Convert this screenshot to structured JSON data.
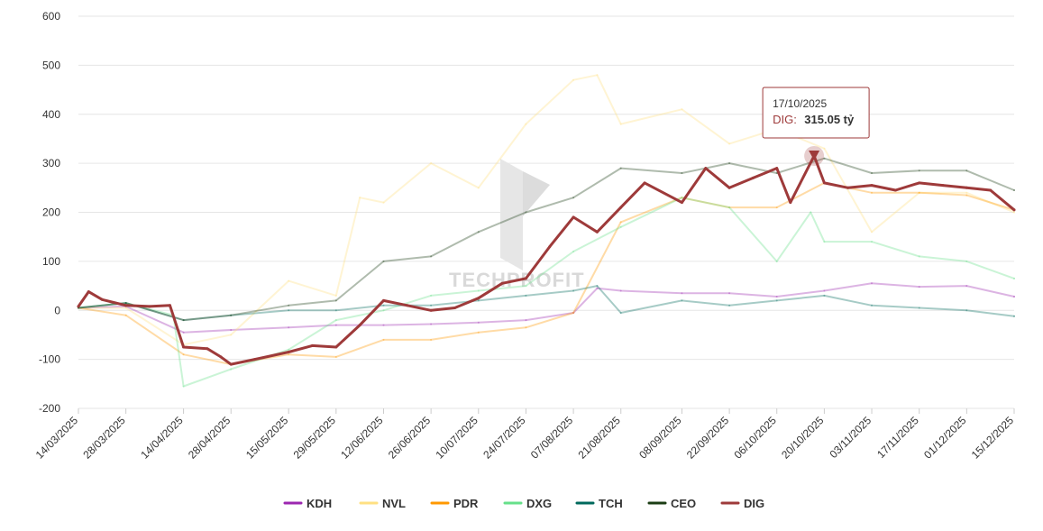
{
  "chart_data": {
    "type": "line",
    "title": "",
    "xlabel": "",
    "ylabel": "",
    "ylim": [
      -200,
      600
    ],
    "yticks": [
      600,
      500,
      400,
      300,
      200,
      100,
      0,
      -100,
      -200
    ],
    "xlim": [
      "14/03/2025",
      "15/12/2025"
    ],
    "xticks": [
      "14/03/2025",
      "28/03/2025",
      "14/04/2025",
      "28/04/2025",
      "15/05/2025",
      "29/05/2025",
      "12/06/2025",
      "26/06/2025",
      "10/07/2025",
      "24/07/2025",
      "07/08/2025",
      "21/08/2025",
      "08/09/2025",
      "22/09/2025",
      "06/10/2025",
      "20/10/2025",
      "03/11/2025",
      "17/11/2025",
      "01/12/2025",
      "15/12/2025"
    ],
    "grid": true,
    "legend_position": "bottom",
    "highlighted_series": "DIG",
    "watermark": "TECHPROFIT",
    "series": [
      {
        "name": "KDH",
        "color": "#9c27b0",
        "x": [
          "14/03/2025",
          "28/03/2025",
          "14/04/2025",
          "28/04/2025",
          "15/05/2025",
          "29/05/2025",
          "12/06/2025",
          "26/06/2025",
          "10/07/2025",
          "24/07/2025",
          "07/08/2025",
          "14/08/2025",
          "21/08/2025",
          "08/09/2025",
          "22/09/2025",
          "06/10/2025",
          "20/10/2025",
          "03/11/2025",
          "17/11/2025",
          "01/12/2025",
          "15/12/2025"
        ],
        "values": [
          5,
          8,
          -45,
          -40,
          -35,
          -30,
          -30,
          -28,
          -25,
          -20,
          -5,
          45,
          40,
          35,
          35,
          28,
          40,
          55,
          48,
          50,
          28
        ]
      },
      {
        "name": "NVL",
        "color": "#ffe082",
        "x": [
          "14/03/2025",
          "28/03/2025",
          "14/04/2025",
          "28/04/2025",
          "15/05/2025",
          "29/05/2025",
          "05/06/2025",
          "12/06/2025",
          "26/06/2025",
          "10/07/2025",
          "24/07/2025",
          "07/08/2025",
          "14/08/2025",
          "21/08/2025",
          "08/09/2025",
          "22/09/2025",
          "06/10/2025",
          "20/10/2025",
          "03/11/2025",
          "17/11/2025",
          "01/12/2025",
          "15/12/2025"
        ],
        "values": [
          5,
          5,
          -70,
          -50,
          60,
          30,
          230,
          220,
          300,
          250,
          380,
          470,
          480,
          380,
          410,
          340,
          370,
          330,
          160,
          240,
          240,
          200
        ]
      },
      {
        "name": "PDR",
        "color": "#ff9800",
        "x": [
          "14/03/2025",
          "28/03/2025",
          "14/04/2025",
          "28/04/2025",
          "15/05/2025",
          "29/05/2025",
          "12/06/2025",
          "26/06/2025",
          "10/07/2025",
          "24/07/2025",
          "07/08/2025",
          "21/08/2025",
          "08/09/2025",
          "22/09/2025",
          "06/10/2025",
          "20/10/2025",
          "03/11/2025",
          "17/11/2025",
          "01/12/2025",
          "15/12/2025"
        ],
        "values": [
          5,
          -10,
          -90,
          -110,
          -90,
          -95,
          -60,
          -60,
          -45,
          -35,
          -5,
          180,
          230,
          210,
          210,
          260,
          240,
          240,
          235,
          205
        ]
      },
      {
        "name": "DXG",
        "color": "#66e08a",
        "x": [
          "14/03/2025",
          "28/03/2025",
          "11/04/2025",
          "14/04/2025",
          "28/04/2025",
          "15/05/2025",
          "29/05/2025",
          "12/06/2025",
          "26/06/2025",
          "10/07/2025",
          "24/07/2025",
          "07/08/2025",
          "21/08/2025",
          "08/09/2025",
          "22/09/2025",
          "06/10/2025",
          "16/10/2025",
          "20/10/2025",
          "03/11/2025",
          "17/11/2025",
          "01/12/2025",
          "15/12/2025"
        ],
        "values": [
          5,
          15,
          -10,
          -155,
          -120,
          -80,
          -20,
          0,
          30,
          40,
          50,
          120,
          170,
          230,
          210,
          100,
          200,
          140,
          140,
          110,
          100,
          65
        ]
      },
      {
        "name": "TCH",
        "color": "#00695c",
        "x": [
          "14/03/2025",
          "28/03/2025",
          "14/04/2025",
          "28/04/2025",
          "15/05/2025",
          "29/05/2025",
          "12/06/2025",
          "26/06/2025",
          "10/07/2025",
          "24/07/2025",
          "07/08/2025",
          "14/08/2025",
          "21/08/2025",
          "08/09/2025",
          "22/09/2025",
          "06/10/2025",
          "20/10/2025",
          "03/11/2025",
          "17/11/2025",
          "01/12/2025",
          "15/12/2025"
        ],
        "values": [
          5,
          15,
          -20,
          -10,
          0,
          0,
          10,
          10,
          20,
          30,
          40,
          50,
          -5,
          20,
          10,
          20,
          30,
          10,
          5,
          0,
          -12
        ]
      },
      {
        "name": "CEO",
        "color": "#1b3d14",
        "x": [
          "14/03/2025",
          "28/03/2025",
          "14/04/2025",
          "28/04/2025",
          "15/05/2025",
          "29/05/2025",
          "12/06/2025",
          "26/06/2025",
          "10/07/2025",
          "24/07/2025",
          "07/08/2025",
          "21/08/2025",
          "08/09/2025",
          "22/09/2025",
          "06/10/2025",
          "20/10/2025",
          "03/11/2025",
          "17/11/2025",
          "01/12/2025",
          "15/12/2025"
        ],
        "values": [
          5,
          15,
          -20,
          -10,
          10,
          20,
          100,
          110,
          160,
          200,
          230,
          290,
          280,
          300,
          280,
          310,
          280,
          285,
          285,
          245
        ]
      },
      {
        "name": "DIG",
        "color": "#9e3a3a",
        "x": [
          "14/03/2025",
          "17/03/2025",
          "21/03/2025",
          "28/03/2025",
          "04/04/2025",
          "10/04/2025",
          "14/04/2025",
          "21/04/2025",
          "25/04/2025",
          "28/04/2025",
          "05/05/2025",
          "15/05/2025",
          "22/05/2025",
          "29/05/2025",
          "05/06/2025",
          "12/06/2025",
          "19/06/2025",
          "26/06/2025",
          "03/07/2025",
          "10/07/2025",
          "17/07/2025",
          "24/07/2025",
          "31/07/2025",
          "07/08/2025",
          "14/08/2025",
          "21/08/2025",
          "28/08/2025",
          "08/09/2025",
          "15/09/2025",
          "22/09/2025",
          "29/09/2025",
          "06/10/2025",
          "10/10/2025",
          "17/10/2025",
          "20/10/2025",
          "27/10/2025",
          "03/11/2025",
          "10/11/2025",
          "17/11/2025",
          "24/11/2025",
          "01/12/2025",
          "08/12/2025",
          "15/12/2025"
        ],
        "values": [
          8,
          38,
          22,
          10,
          8,
          10,
          -75,
          -78,
          -95,
          -110,
          -100,
          -85,
          -72,
          -75,
          -30,
          20,
          10,
          0,
          5,
          25,
          55,
          65,
          130,
          190,
          160,
          210,
          260,
          220,
          290,
          250,
          270,
          290,
          220,
          315.05,
          260,
          250,
          255,
          245,
          260,
          255,
          250,
          245,
          205
        ]
      }
    ],
    "tooltip": {
      "date": "17/10/2025",
      "series": "DIG",
      "label": "DIG:",
      "value": "315.05 tỷ"
    }
  }
}
